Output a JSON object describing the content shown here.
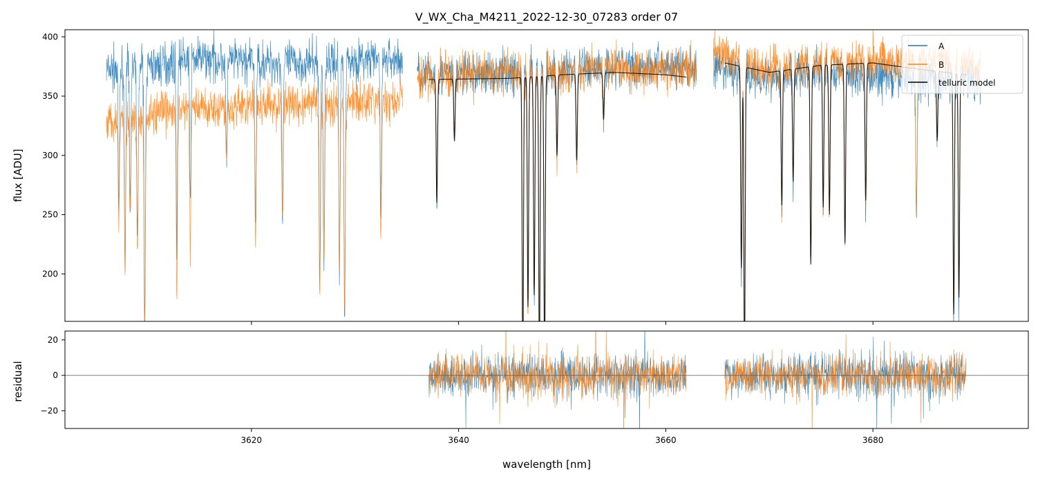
{
  "chart_data": [
    {
      "type": "line",
      "title": "V_WX_Cha_M4211_2022-12-30_07283  order 07",
      "xlabel": "",
      "ylabel": "flux [ADU]",
      "xlim": [
        3602,
        3695
      ],
      "ylim": [
        160,
        406
      ],
      "xticks": [
        3620,
        3640,
        3660,
        3680
      ],
      "xticklabels_shown": false,
      "yticks": [
        200,
        250,
        300,
        350,
        400
      ],
      "legend": {
        "placement": "top-right",
        "entries": [
          "A",
          "B",
          "telluric model"
        ]
      },
      "colors": {
        "A": "#1f77b4",
        "B": "#ff7f0e",
        "telluric model": "#000000"
      },
      "series": [
        {
          "name": "A",
          "continuum": [
            [
              3606,
              372
            ],
            [
              3610,
              374
            ],
            [
              3614,
              382
            ],
            [
              3618,
              380
            ],
            [
              3622,
              378
            ],
            [
              3626,
              378
            ],
            [
              3630,
              380
            ],
            [
              3634,
              381
            ],
            [
              3636.5,
              368
            ],
            [
              3640,
              368
            ],
            [
              3645,
              370
            ],
            [
              3650,
              372
            ],
            [
              3655,
              376
            ],
            [
              3660,
              376
            ],
            [
              3662,
              374
            ],
            [
              3665,
              372
            ],
            [
              3670,
              366
            ],
            [
              3675,
              372
            ],
            [
              3680,
              366
            ],
            [
              3685,
              365
            ],
            [
              3690,
              364
            ]
          ],
          "gaps": [
            [
              3634.6,
              3636.0
            ],
            [
              3663.0,
              3664.6
            ]
          ],
          "absorption_lines": [
            [
              3607.2,
              250
            ],
            [
              3607.8,
              215
            ],
            [
              3608.3,
              255
            ],
            [
              3609.0,
              222
            ],
            [
              3609.7,
              150
            ],
            [
              3612.8,
              230
            ],
            [
              3614.1,
              268
            ],
            [
              3617.6,
              292
            ],
            [
              3620.4,
              238
            ],
            [
              3623.0,
              250
            ],
            [
              3626.6,
              190
            ],
            [
              3627.0,
              210
            ],
            [
              3628.5,
              200
            ],
            [
              3629.0,
              170
            ],
            [
              3632.5,
              255
            ],
            [
              3637.9,
              260
            ],
            [
              3639.6,
              312
            ],
            [
              3646.2,
              120
            ],
            [
              3646.7,
              170
            ],
            [
              3647.3,
              180
            ],
            [
              3647.8,
              120
            ],
            [
              3648.3,
              120
            ],
            [
              3649.5,
              300
            ],
            [
              3651.4,
              294
            ],
            [
              3654.0,
              330
            ],
            [
              3667.3,
              200
            ],
            [
              3667.6,
              120
            ],
            [
              3671.2,
              255
            ],
            [
              3672.3,
              278
            ],
            [
              3674.0,
              208
            ],
            [
              3675.2,
              255
            ],
            [
              3675.8,
              250
            ],
            [
              3677.3,
              225
            ],
            [
              3679.3,
              260
            ],
            [
              3684.2,
              242
            ],
            [
              3686.2,
              310
            ],
            [
              3687.8,
              165
            ],
            [
              3688.3,
              178
            ]
          ]
        },
        {
          "name": "B",
          "continuum": [
            [
              3606,
              330
            ],
            [
              3610,
              334
            ],
            [
              3614,
              340
            ],
            [
              3618,
              342
            ],
            [
              3622,
              342
            ],
            [
              3626,
              344
            ],
            [
              3630,
              345
            ],
            [
              3634,
              344
            ],
            [
              3636.5,
              366
            ],
            [
              3640,
              368
            ],
            [
              3645,
              370
            ],
            [
              3650,
              372
            ],
            [
              3655,
              374
            ],
            [
              3660,
              372
            ],
            [
              3662,
              372
            ],
            [
              3665,
              386
            ],
            [
              3670,
              372
            ],
            [
              3675,
              378
            ],
            [
              3680,
              382
            ],
            [
              3685,
              378
            ],
            [
              3690,
              375
            ]
          ],
          "gaps": [
            [
              3634.6,
              3636.0
            ],
            [
              3663.0,
              3664.6
            ]
          ],
          "absorption_lines": [
            [
              3607.2,
              248
            ],
            [
              3607.8,
              213
            ],
            [
              3608.3,
              252
            ],
            [
              3609.0,
              218
            ],
            [
              3609.7,
              150
            ],
            [
              3612.8,
              184
            ],
            [
              3614.1,
              218
            ],
            [
              3617.6,
              290
            ],
            [
              3620.4,
              236
            ],
            [
              3623.0,
              245
            ],
            [
              3626.6,
              170
            ],
            [
              3627.0,
              208
            ],
            [
              3628.5,
              198
            ],
            [
              3629.0,
              168
            ],
            [
              3632.5,
              235
            ],
            [
              3637.9,
              262
            ],
            [
              3639.6,
              314
            ],
            [
              3646.2,
              120
            ],
            [
              3646.7,
              172
            ],
            [
              3647.3,
              178
            ],
            [
              3647.8,
              120
            ],
            [
              3648.3,
              120
            ],
            [
              3649.5,
              302
            ],
            [
              3651.4,
              296
            ],
            [
              3654.0,
              332
            ],
            [
              3667.3,
              205
            ],
            [
              3667.6,
              120
            ],
            [
              3671.2,
              258
            ],
            [
              3672.3,
              280
            ],
            [
              3674.0,
              210
            ],
            [
              3675.2,
              258
            ],
            [
              3675.8,
              252
            ],
            [
              3677.3,
              228
            ],
            [
              3679.3,
              262
            ],
            [
              3684.2,
              250
            ],
            [
              3686.2,
              312
            ],
            [
              3687.8,
              166
            ],
            [
              3688.3,
              180
            ]
          ]
        },
        {
          "name": "telluric model",
          "segments": [
            [
              3637.1,
              3662.0
            ],
            [
              3665.7,
              3689.0
            ]
          ],
          "continuum": [
            [
              3637.1,
              364
            ],
            [
              3645,
              365
            ],
            [
              3650,
              368
            ],
            [
              3655,
              370
            ],
            [
              3660,
              368
            ],
            [
              3662,
              366
            ],
            [
              3665.7,
              378
            ],
            [
              3670,
              370
            ],
            [
              3675,
              376
            ],
            [
              3680,
              378
            ],
            [
              3685,
              372
            ],
            [
              3689,
              368
            ]
          ],
          "absorption_lines": [
            [
              3637.9,
              260
            ],
            [
              3639.6,
              312
            ],
            [
              3646.2,
              120
            ],
            [
              3646.7,
              172
            ],
            [
              3647.3,
              182
            ],
            [
              3647.8,
              120
            ],
            [
              3648.3,
              120
            ],
            [
              3649.5,
              300
            ],
            [
              3651.4,
              296
            ],
            [
              3654.0,
              330
            ],
            [
              3667.3,
              205
            ],
            [
              3667.6,
              120
            ],
            [
              3671.2,
              258
            ],
            [
              3672.3,
              278
            ],
            [
              3674.0,
              208
            ],
            [
              3675.2,
              256
            ],
            [
              3675.8,
              250
            ],
            [
              3677.3,
              226
            ],
            [
              3679.3,
              262
            ],
            [
              3686.2,
              312
            ],
            [
              3687.8,
              166
            ],
            [
              3688.3,
              180
            ]
          ]
        }
      ]
    },
    {
      "type": "line",
      "title": "",
      "xlabel": "wavelength [nm]",
      "ylabel": "residual",
      "xlim": [
        3602,
        3695
      ],
      "ylim": [
        -30,
        25
      ],
      "xticks": [
        3620,
        3640,
        3660,
        3680
      ],
      "yticks": [
        -20,
        0,
        20
      ],
      "zero_line": 0,
      "series": [
        {
          "name": "A",
          "segments": [
            [
              3637.1,
              3662.0
            ],
            [
              3665.7,
              3689.0
            ]
          ],
          "noise_amplitude": 11
        },
        {
          "name": "B",
          "segments": [
            [
              3637.1,
              3662.0
            ],
            [
              3665.7,
              3689.0
            ]
          ],
          "noise_amplitude": 11
        }
      ]
    }
  ]
}
